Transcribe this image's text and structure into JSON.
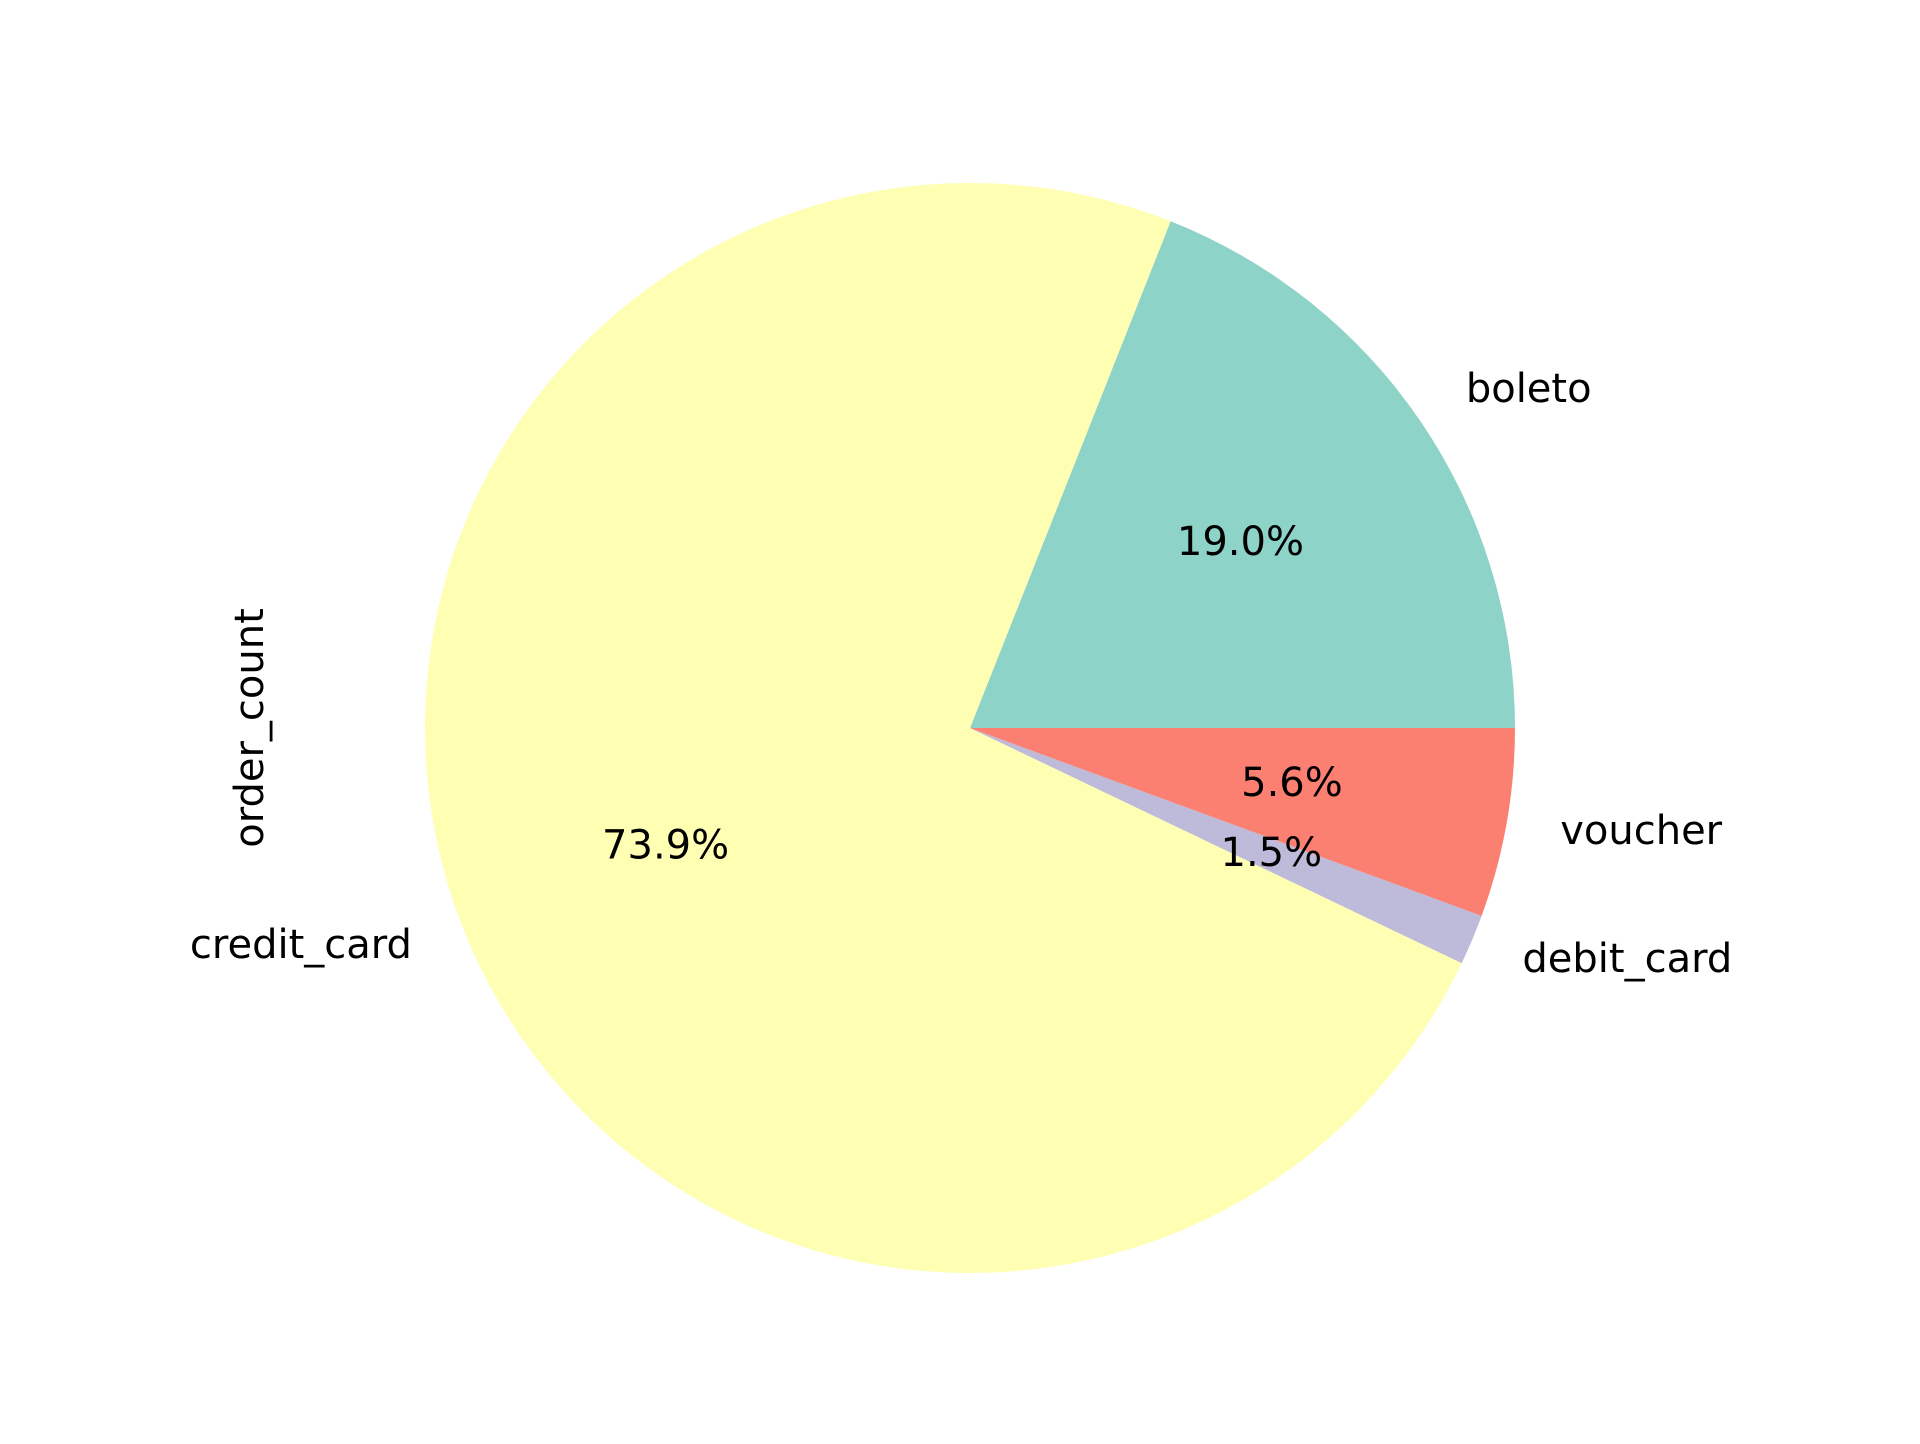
{
  "chart_data": {
    "type": "pie",
    "title": "",
    "ylabel": "order_count",
    "start_angle_deg": 0,
    "direction": "counterclockwise",
    "slices": [
      {
        "label": "boleto",
        "percent": 19.0,
        "pct_text": "19.0%",
        "color": "#8dd3c7"
      },
      {
        "label": "credit_card",
        "percent": 73.9,
        "pct_text": "73.9%",
        "color": "#ffffb3"
      },
      {
        "label": "debit_card",
        "percent": 1.5,
        "pct_text": "1.5%",
        "color": "#bebada"
      },
      {
        "label": "voucher",
        "percent": 5.6,
        "pct_text": "5.6%",
        "color": "#fb8072"
      }
    ]
  }
}
